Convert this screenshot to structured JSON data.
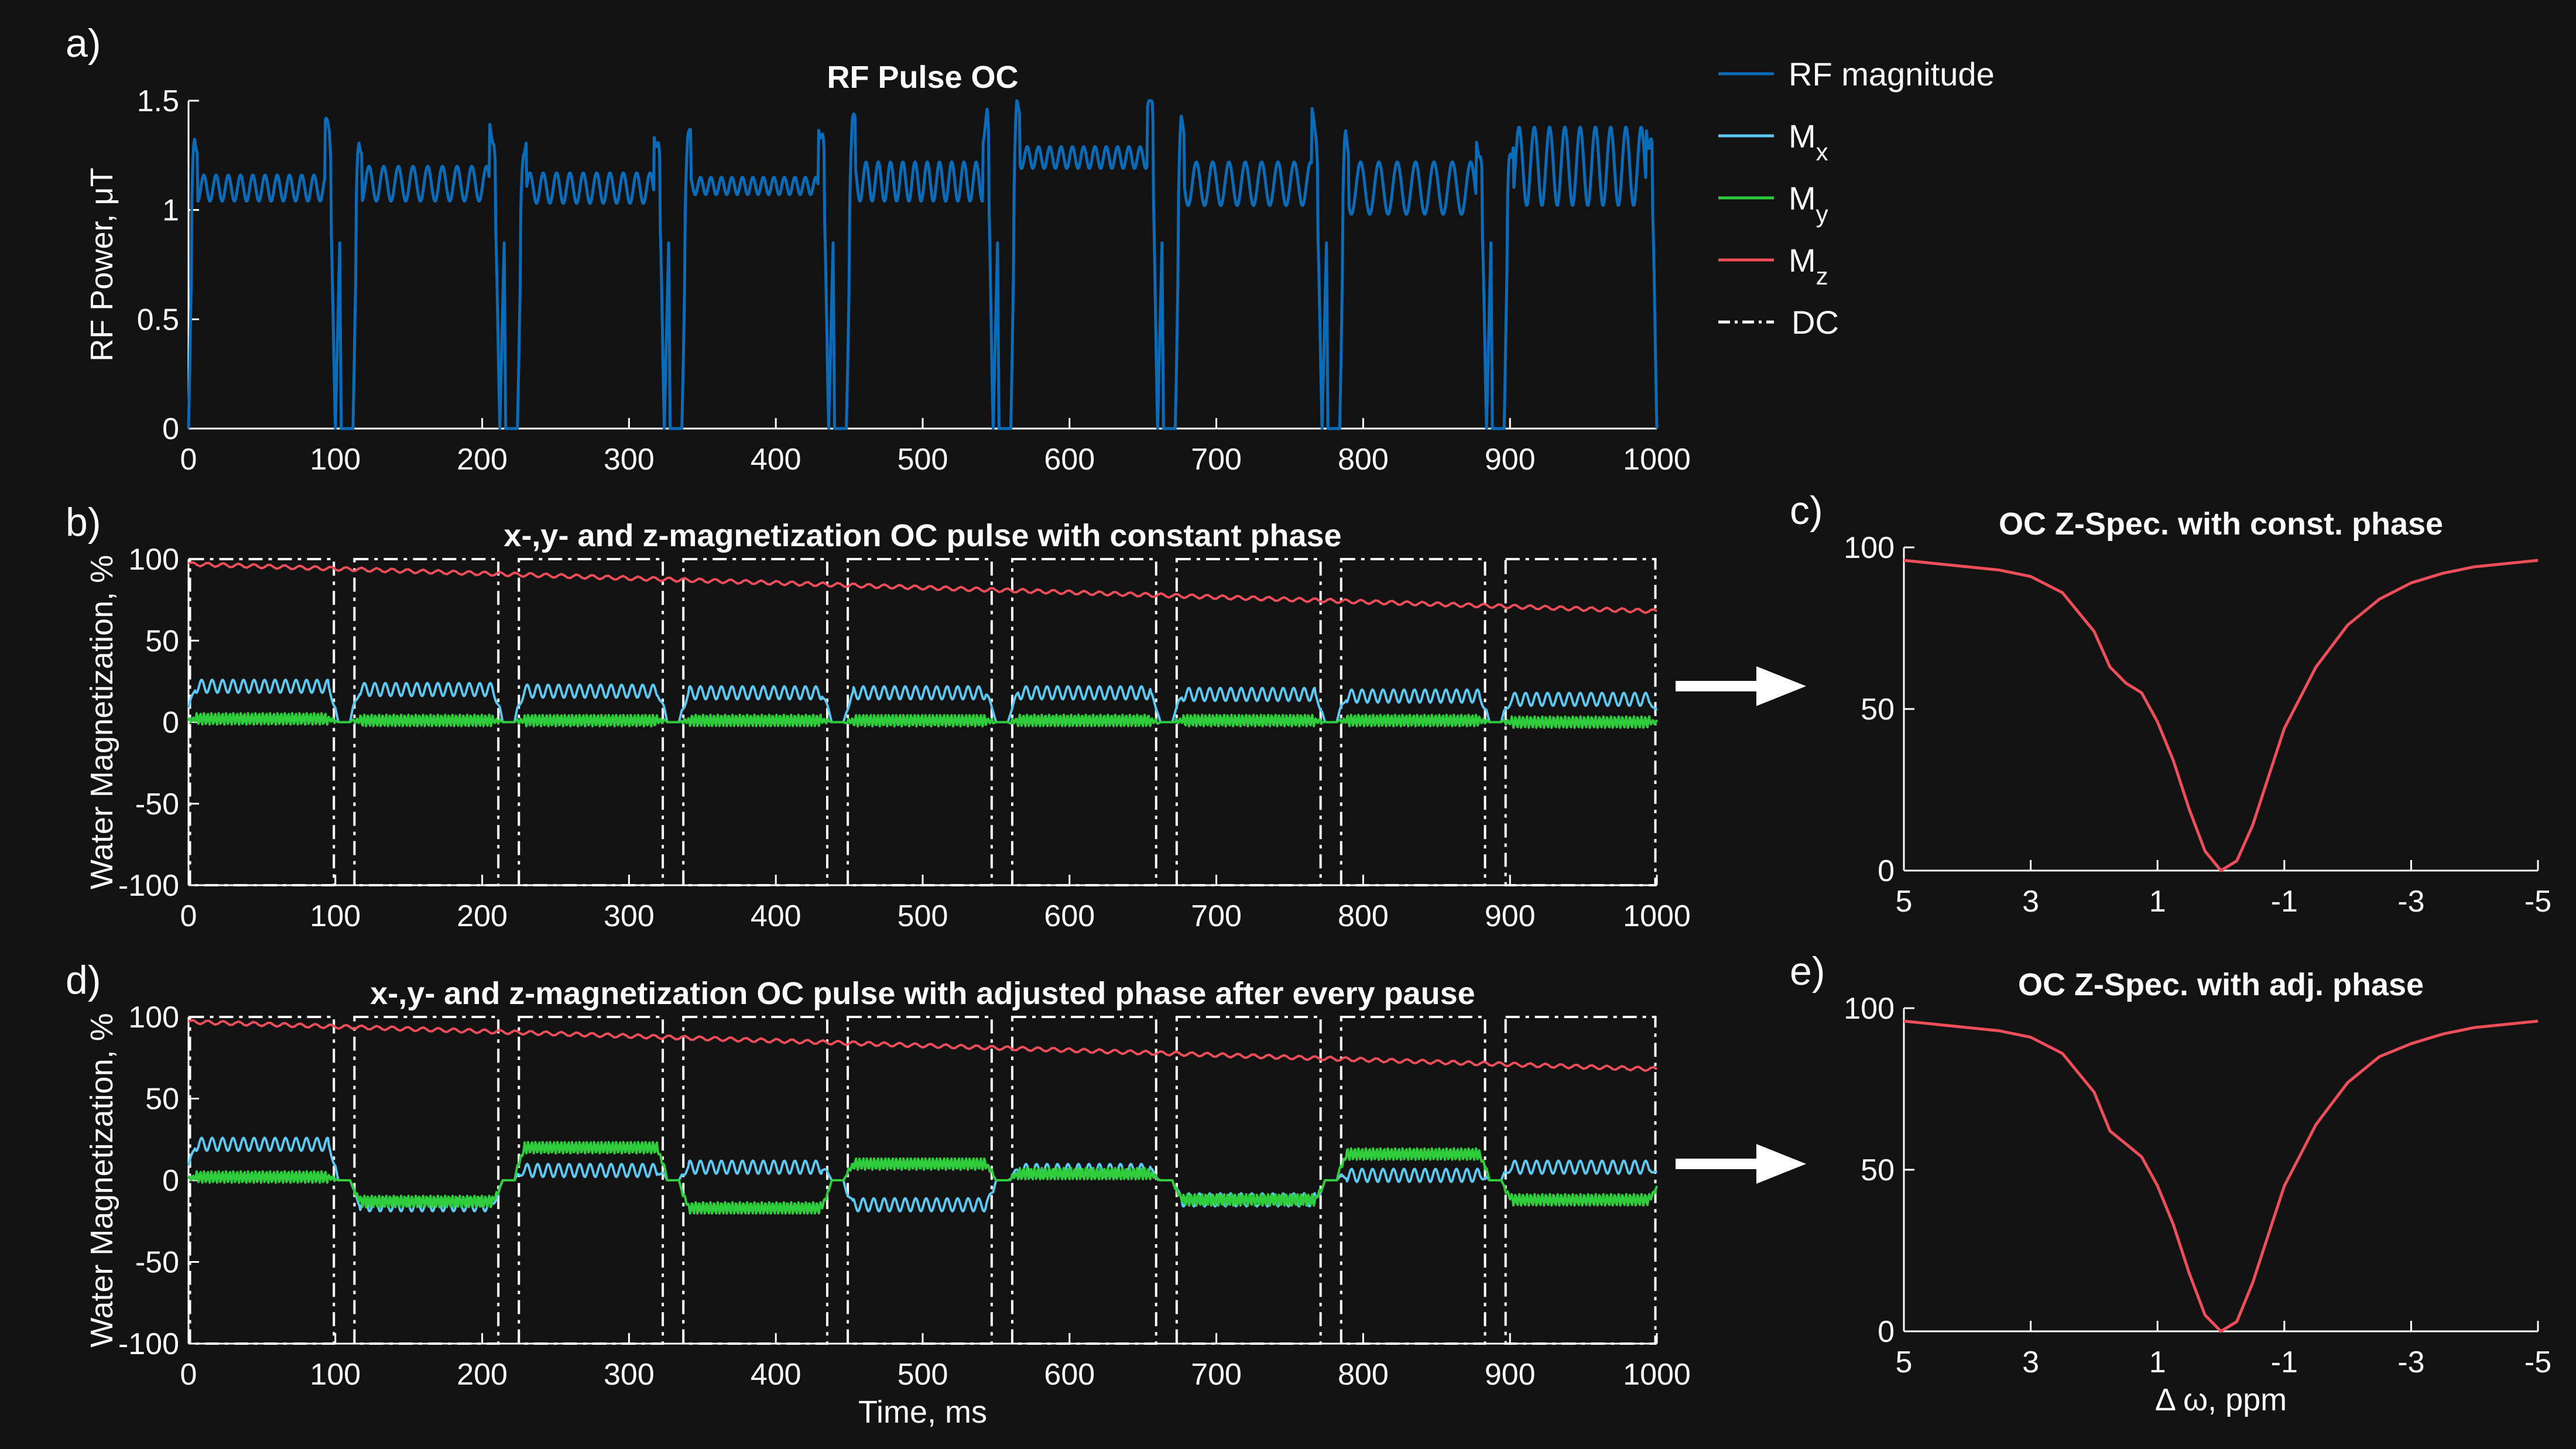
{
  "colors": {
    "background": "#121212",
    "axis": "#ffffff",
    "rf": "#0a6bb8",
    "mx": "#5cc8f4",
    "my": "#2fcc3c",
    "mz": "#ee4d5a",
    "dc": "#ffffff",
    "zspec": "#ee4d5a"
  },
  "legend": {
    "items": [
      {
        "key": "rf",
        "label": "RF magnitude",
        "sub": "",
        "dash": false
      },
      {
        "key": "mx",
        "label": "M",
        "sub": "x",
        "dash": false
      },
      {
        "key": "my",
        "label": "M",
        "sub": "y",
        "dash": false
      },
      {
        "key": "mz",
        "label": "M",
        "sub": "z",
        "dash": false
      },
      {
        "key": "dc",
        "label": "DC",
        "sub": "",
        "dash": true
      }
    ]
  },
  "arrows": [
    {
      "name": "arrow-to-c"
    },
    {
      "name": "arrow-to-e"
    }
  ],
  "chart_data": [
    {
      "id": "a",
      "panel_label": "a)",
      "type": "line",
      "title": "RF Pulse OC",
      "xlabel": "",
      "ylabel": "RF Power, μT",
      "xlim": [
        0,
        1000
      ],
      "ylim": [
        0,
        1.5
      ],
      "xticks": [
        0,
        100,
        200,
        300,
        400,
        500,
        600,
        700,
        800,
        900,
        1000
      ],
      "yticks": [
        0,
        0.5,
        1,
        1.5
      ],
      "ytick_labels": [
        "0",
        "0.5",
        "1",
        "1.5"
      ],
      "segments": [
        {
          "start": 0,
          "end": 100,
          "base": 1.1,
          "osc": 0.06,
          "freq": 12
        },
        {
          "start": 112,
          "end": 212,
          "base": 1.12,
          "osc": 0.08,
          "freq": 10
        },
        {
          "start": 224,
          "end": 324,
          "base": 1.1,
          "osc": 0.07,
          "freq": 11
        },
        {
          "start": 336,
          "end": 436,
          "base": 1.11,
          "osc": 0.04,
          "freq": 14
        },
        {
          "start": 448,
          "end": 548,
          "base": 1.13,
          "osc": 0.09,
          "freq": 12
        },
        {
          "start": 560,
          "end": 660,
          "base": 1.24,
          "osc": 0.05,
          "freq": 13
        },
        {
          "start": 672,
          "end": 772,
          "base": 1.12,
          "osc": 0.1,
          "freq": 9
        },
        {
          "start": 784,
          "end": 884,
          "base": 1.1,
          "osc": 0.12,
          "freq": 8
        },
        {
          "start": 896,
          "end": 1000,
          "base": 1.2,
          "osc": 0.18,
          "freq": 10
        }
      ],
      "series": [
        {
          "name": "RF magnitude",
          "key": "rf"
        }
      ]
    },
    {
      "id": "b",
      "panel_label": "b)",
      "type": "line",
      "title": "x-,y- and z-magnetization OC pulse with constant phase",
      "xlabel": "",
      "ylabel": "Water Magnetization, %",
      "xlim": [
        0,
        1000
      ],
      "ylim": [
        -100,
        100
      ],
      "xticks": [
        0,
        100,
        200,
        300,
        400,
        500,
        600,
        700,
        800,
        900,
        1000
      ],
      "yticks": [
        -100,
        -50,
        0,
        50,
        100
      ],
      "dc_windows": [
        [
          0,
          100
        ],
        [
          112,
          212
        ],
        [
          224,
          324
        ],
        [
          336,
          436
        ],
        [
          448,
          548
        ],
        [
          560,
          660
        ],
        [
          672,
          772
        ],
        [
          784,
          884
        ],
        [
          896,
          1000
        ]
      ],
      "mz": {
        "start": 97,
        "end": 68
      },
      "mx_levels": [
        22,
        20,
        19,
        18,
        18,
        18,
        17,
        16,
        14
      ],
      "my_levels": [
        2,
        1,
        1,
        1,
        1,
        1,
        1,
        1,
        0
      ],
      "series": [
        {
          "name": "Mx",
          "key": "mx"
        },
        {
          "name": "My",
          "key": "my"
        },
        {
          "name": "Mz",
          "key": "mz"
        },
        {
          "name": "DC",
          "key": "dc"
        }
      ]
    },
    {
      "id": "d",
      "panel_label": "d)",
      "type": "line",
      "title": "x-,y- and z-magnetization OC pulse with adjusted phase after every pause",
      "xlabel": "Time, ms",
      "ylabel": "Water Magnetization, %",
      "xlim": [
        0,
        1000
      ],
      "ylim": [
        -100,
        100
      ],
      "xticks": [
        0,
        100,
        200,
        300,
        400,
        500,
        600,
        700,
        800,
        900,
        1000
      ],
      "yticks": [
        -100,
        -50,
        0,
        50,
        100
      ],
      "dc_windows": [
        [
          0,
          100
        ],
        [
          112,
          212
        ],
        [
          224,
          324
        ],
        [
          336,
          436
        ],
        [
          448,
          548
        ],
        [
          560,
          660
        ],
        [
          672,
          772
        ],
        [
          784,
          884
        ],
        [
          896,
          1000
        ]
      ],
      "mz": {
        "start": 97,
        "end": 68
      },
      "mx_levels": [
        22,
        -15,
        6,
        8,
        -15,
        6,
        -12,
        3,
        8
      ],
      "my_levels": [
        2,
        -13,
        20,
        -17,
        10,
        4,
        -12,
        16,
        -12
      ],
      "series": [
        {
          "name": "Mx",
          "key": "mx"
        },
        {
          "name": "My",
          "key": "my"
        },
        {
          "name": "Mz",
          "key": "mz"
        },
        {
          "name": "DC",
          "key": "dc"
        }
      ]
    },
    {
      "id": "c",
      "panel_label": "c)",
      "type": "line",
      "title": "OC Z-Spec. with const. phase",
      "xlabel": "",
      "ylabel": "",
      "xlim": [
        5,
        -5
      ],
      "ylim": [
        0,
        100
      ],
      "xticks": [
        5,
        3,
        1,
        -1,
        -3,
        -5
      ],
      "yticks": [
        0,
        50,
        100
      ],
      "x": [
        5,
        4.5,
        4,
        3.5,
        3,
        2.5,
        2,
        1.75,
        1.5,
        1.25,
        1,
        0.75,
        0.5,
        0.25,
        0,
        -0.25,
        -0.5,
        -0.75,
        -1,
        -1.5,
        -2,
        -2.5,
        -3,
        -3.5,
        -4,
        -4.5,
        -5
      ],
      "values": [
        96,
        95,
        94,
        93,
        91,
        86,
        74,
        63,
        58,
        55,
        46,
        34,
        19,
        6,
        0,
        3,
        14,
        29,
        44,
        63,
        76,
        84,
        89,
        92,
        94,
        95,
        96
      ],
      "series": [
        {
          "name": "Z-spectrum",
          "key": "zspec"
        }
      ]
    },
    {
      "id": "e",
      "panel_label": "e)",
      "type": "line",
      "title": "OC Z-Spec. with adj. phase",
      "xlabel": "Δ ω, ppm",
      "ylabel": "",
      "xlim": [
        5,
        -5
      ],
      "ylim": [
        0,
        100
      ],
      "xticks": [
        5,
        3,
        1,
        -1,
        -3,
        -5
      ],
      "yticks": [
        0,
        50,
        100
      ],
      "x": [
        5,
        4.5,
        4,
        3.5,
        3,
        2.5,
        2,
        1.75,
        1.5,
        1.25,
        1,
        0.75,
        0.5,
        0.25,
        0,
        -0.25,
        -0.5,
        -0.75,
        -1,
        -1.5,
        -2,
        -2.5,
        -3,
        -3.5,
        -4,
        -4.5,
        -5
      ],
      "values": [
        96,
        95,
        94,
        93,
        91,
        86,
        74,
        62,
        58,
        54,
        45,
        33,
        18,
        5,
        0,
        3,
        15,
        30,
        45,
        64,
        77,
        85,
        89,
        92,
        94,
        95,
        96
      ],
      "series": [
        {
          "name": "Z-spectrum",
          "key": "zspec"
        }
      ]
    }
  ]
}
